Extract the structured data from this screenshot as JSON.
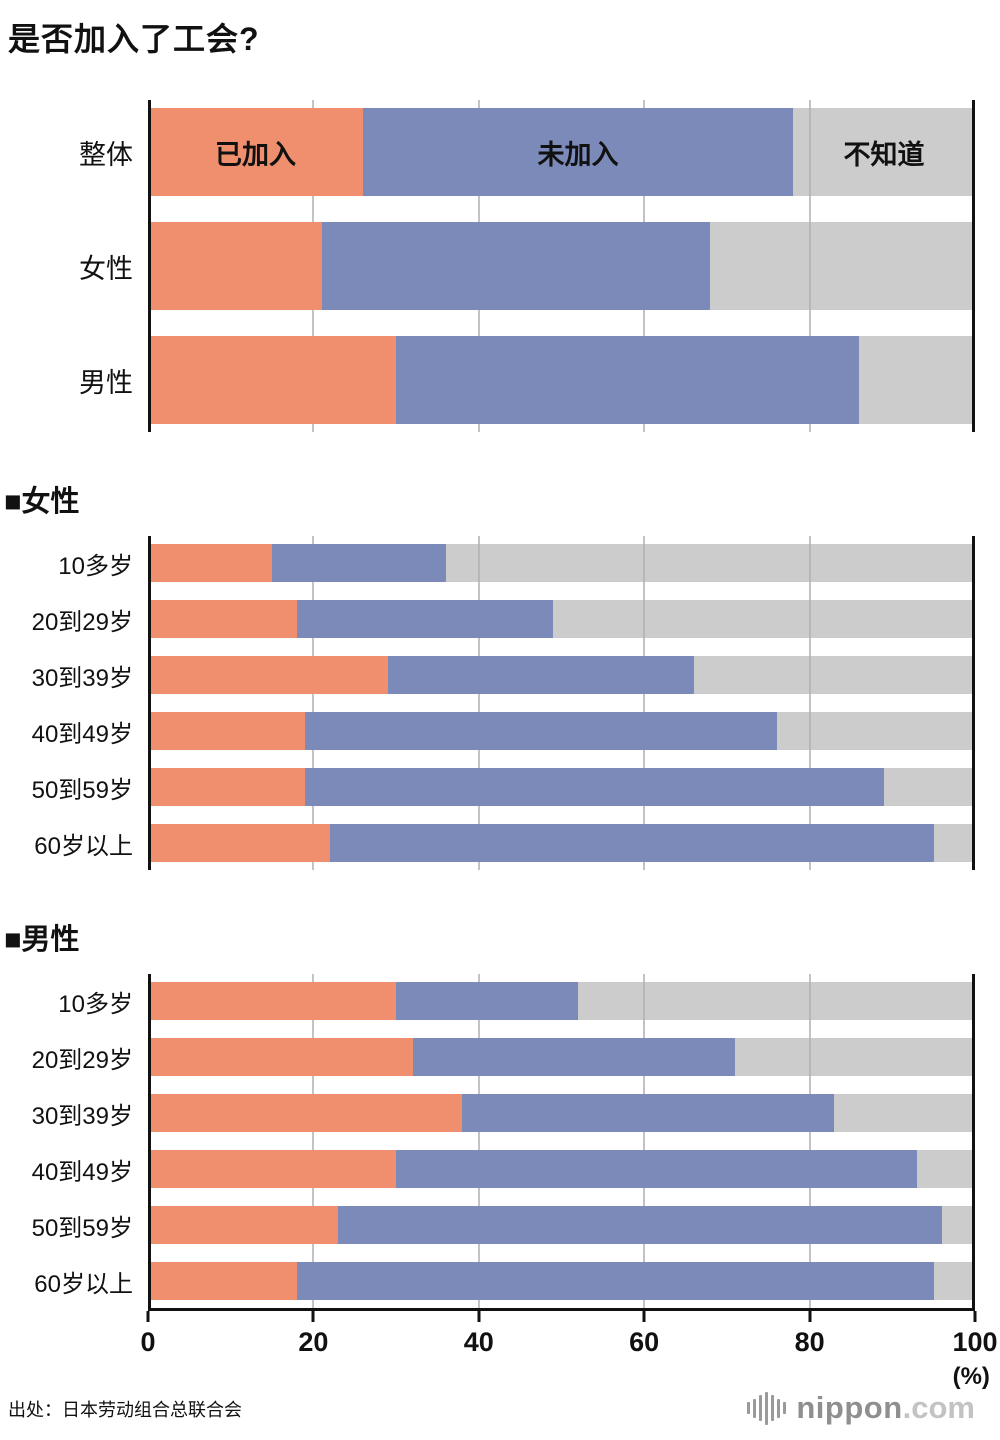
{
  "title": "是否加入了工会?",
  "source": "出处：日本劳动组合总联合会",
  "logo": {
    "name": "nippon",
    "tld": ".com"
  },
  "axis": {
    "ticks": [
      0,
      20,
      40,
      60,
      80,
      100
    ],
    "unit": "(%)"
  },
  "legend": {
    "joined": "已加入",
    "not_joined": "未加入",
    "dont_know": "不知道"
  },
  "colors": {
    "joined": "#ef8f6d",
    "not_joined": "#7c8aba",
    "dont_know": "#cbcbcb"
  },
  "render": {
    "dont_know_overlay": "rgba(176,176,176,0.65)",
    "gridline": "#c3c3c3",
    "axis_line": "#111111",
    "segment_name_keys": [
      "joined",
      "not-joined",
      "dont-know"
    ]
  },
  "chart_data": [
    {
      "type": "bar",
      "stacked": true,
      "section": "",
      "segment_labels_on_first_row": true,
      "categories": [
        "整体",
        "女性",
        "男性"
      ],
      "series": [
        {
          "name": "已加入",
          "values": [
            26,
            21,
            30
          ]
        },
        {
          "name": "未加入",
          "values": [
            52,
            47,
            56
          ]
        },
        {
          "name": "不知道",
          "values": [
            22,
            32,
            14
          ]
        }
      ],
      "xlim": [
        0,
        100
      ]
    },
    {
      "type": "bar",
      "stacked": true,
      "section": "■女性",
      "segment_labels_on_first_row": false,
      "categories": [
        "10多岁",
        "20到29岁",
        "30到39岁",
        "40到49岁",
        "50到59岁",
        "60岁以上"
      ],
      "series": [
        {
          "name": "已加入",
          "values": [
            15,
            18,
            29,
            19,
            19,
            22
          ]
        },
        {
          "name": "未加入",
          "values": [
            21,
            31,
            37,
            57,
            70,
            73
          ]
        },
        {
          "name": "不知道",
          "values": [
            64,
            51,
            34,
            24,
            11,
            5
          ]
        }
      ],
      "xlim": [
        0,
        100
      ]
    },
    {
      "type": "bar",
      "stacked": true,
      "section": "■男性",
      "segment_labels_on_first_row": false,
      "categories": [
        "10多岁",
        "20到29岁",
        "30到39岁",
        "40到49岁",
        "50到59岁",
        "60岁以上"
      ],
      "series": [
        {
          "name": "已加入",
          "values": [
            30,
            32,
            38,
            30,
            23,
            18
          ]
        },
        {
          "name": "未加入",
          "values": [
            22,
            39,
            45,
            63,
            73,
            77
          ]
        },
        {
          "name": "不知道",
          "values": [
            48,
            29,
            17,
            7,
            4,
            5
          ]
        }
      ],
      "xlim": [
        0,
        100
      ]
    }
  ]
}
